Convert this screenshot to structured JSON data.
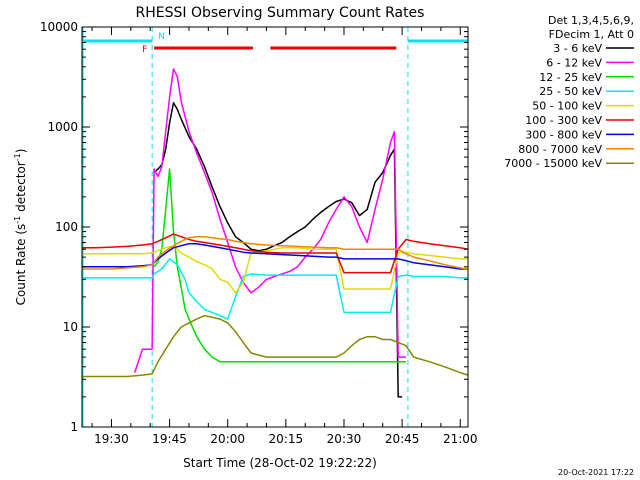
{
  "chart_data": {
    "type": "line",
    "title": "RHESSI Observing Summary Count Rates",
    "xlabel": "Start Time (28-Oct-02 19:22:22)",
    "ylabel": "Count Rate (s⁻¹ detector⁻¹)",
    "ylabel_main": "Count Rate (s",
    "ylabel_mid": " detector",
    "ylabel_close": ")",
    "ylabel_sup": "-1",
    "y_scale": "log",
    "xlim_minutes": [
      19.367,
      21.0
    ],
    "x_tick_labels": [
      "19:30",
      "19:45",
      "20:00",
      "20:15",
      "20:30",
      "20:45",
      "21:00"
    ],
    "x_tick_values": [
      1170,
      1185,
      1200,
      1215,
      1230,
      1245,
      1260
    ],
    "xlim": [
      1162.4,
      1262
    ],
    "ylim": [
      1,
      10000
    ],
    "y_tick_labels": [
      "1",
      "10",
      "100",
      "1000",
      "10000"
    ],
    "y_tick_values": [
      1,
      10,
      100,
      1000,
      10000
    ],
    "legend": {
      "placement": "top-right",
      "header": [
        "Det 1,3,4,5,6,9,",
        "FDecim 1, Att 0"
      ]
    },
    "flags": {
      "n_label": "N",
      "f_label": "F",
      "night_color": "#00e5ee",
      "flare_color": "#ee0000",
      "night": [
        [
          1162.4,
          1180.5
        ],
        [
          1246.5,
          1262
        ]
      ],
      "flare": [
        [
          1181,
          1206.5
        ],
        [
          1211,
          1243.5
        ]
      ],
      "saa_lines": [
        1180.5,
        1246.5
      ]
    },
    "series": [
      {
        "name": "3 - 6 keV",
        "color": "#000000",
        "x": [
          1162.4,
          1180.5,
          1181,
          1182,
          1183,
          1184,
          1185,
          1186,
          1187,
          1188,
          1190,
          1192,
          1194,
          1196,
          1198,
          1200,
          1202,
          1204,
          1206,
          1208,
          1210,
          1212,
          1214,
          1216,
          1218,
          1220,
          1222,
          1224,
          1226,
          1228,
          1230,
          1232,
          1234,
          1236,
          1238,
          1240,
          1242,
          1243,
          1244,
          1245,
          1246.5,
          1262
        ],
        "y": [
          null,
          null,
          350,
          380,
          420,
          600,
          1100,
          1750,
          1500,
          1200,
          800,
          600,
          400,
          250,
          160,
          110,
          80,
          70,
          60,
          58,
          60,
          65,
          70,
          80,
          90,
          100,
          120,
          140,
          160,
          180,
          190,
          175,
          130,
          150,
          280,
          350,
          520,
          600,
          2,
          2,
          null,
          null
        ]
      },
      {
        "name": "6 - 12 keV",
        "color": "#ff00ff",
        "x": [
          1162.4,
          1176,
          1178,
          1180.5,
          1181,
          1182,
          1183,
          1184,
          1185,
          1186,
          1187,
          1188,
          1190,
          1192,
          1194,
          1196,
          1198,
          1200,
          1202,
          1204,
          1206,
          1208,
          1210,
          1212,
          1214,
          1216,
          1218,
          1220,
          1222,
          1224,
          1226,
          1228,
          1230,
          1232,
          1234,
          1236,
          1238,
          1240,
          1242,
          1243,
          1244,
          1246,
          1248,
          1262
        ],
        "y": [
          null,
          3.5,
          6,
          6,
          380,
          320,
          400,
          900,
          2000,
          3800,
          3200,
          1800,
          900,
          550,
          350,
          220,
          120,
          70,
          40,
          28,
          22,
          25,
          30,
          32,
          34,
          36,
          40,
          50,
          60,
          75,
          110,
          150,
          200,
          160,
          100,
          70,
          150,
          300,
          700,
          900,
          5,
          5,
          null,
          null
        ]
      },
      {
        "name": "12 - 25 keV",
        "color": "#00dd00",
        "x": [
          1162.4,
          1180.5,
          1181,
          1182,
          1183,
          1184,
          1185,
          1186,
          1187,
          1188,
          1189,
          1190,
          1192,
          1194,
          1196,
          1198,
          1200,
          1202,
          1204,
          1206,
          1208,
          1210,
          1212,
          1214,
          1216,
          1218,
          1220,
          1222,
          1224,
          1226,
          1228,
          1230,
          1232,
          1234,
          1236,
          1238,
          1240,
          1242,
          1243,
          1244,
          1246,
          1248,
          1262
        ],
        "y": [
          null,
          null,
          40,
          45,
          60,
          150,
          380,
          90,
          40,
          25,
          15,
          12,
          8,
          6,
          5,
          4.5,
          4.5,
          4.5,
          4.5,
          4.5,
          4.5,
          4.5,
          4.5,
          4.5,
          4.5,
          4.5,
          4.5,
          4.5,
          4.5,
          4.5,
          4.5,
          4.5,
          4.5,
          4.5,
          4.5,
          4.5,
          4.5,
          4.5,
          4.5,
          4.5,
          4.5,
          null,
          null
        ]
      },
      {
        "name": "25 - 50 keV",
        "color": "#00eeee",
        "x": [
          1162.4,
          1166,
          1170,
          1174,
          1178,
          1180.5,
          1181,
          1183,
          1185,
          1187,
          1189,
          1190,
          1192,
          1194,
          1196,
          1198,
          1200,
          1202,
          1204,
          1206,
          1210,
          1214,
          1218,
          1222,
          1226,
          1228,
          1230,
          1232,
          1234,
          1236,
          1238,
          1240,
          1242,
          1244,
          1246,
          1248,
          1252,
          1256,
          1260,
          1262
        ],
        "y": [
          31,
          31,
          31,
          31,
          31,
          31,
          34,
          38,
          48,
          42,
          30,
          22,
          18,
          15,
          14,
          13,
          12,
          20,
          32,
          34,
          33,
          33,
          33,
          33,
          33,
          33,
          14,
          14,
          14,
          14,
          14,
          14,
          14,
          32,
          33,
          32,
          32,
          32,
          31,
          31
        ]
      },
      {
        "name": "50 - 100 keV",
        "color": "#dddd00",
        "x": [
          1162.4,
          1166,
          1170,
          1174,
          1178,
          1180.5,
          1182,
          1184,
          1186,
          1188,
          1190,
          1192,
          1194,
          1196,
          1198,
          1200,
          1202,
          1204,
          1206,
          1210,
          1214,
          1218,
          1222,
          1226,
          1228,
          1230,
          1232,
          1234,
          1236,
          1238,
          1240,
          1242,
          1244,
          1246,
          1248,
          1252,
          1256,
          1260,
          1262
        ],
        "y": [
          54,
          54,
          54,
          54,
          54,
          55,
          58,
          62,
          65,
          55,
          50,
          45,
          42,
          38,
          30,
          28,
          22,
          28,
          55,
          58,
          62,
          62,
          60,
          60,
          60,
          24,
          24,
          24,
          24,
          24,
          24,
          24,
          55,
          56,
          54,
          52,
          50,
          48,
          48
        ]
      },
      {
        "name": "100 - 300 keV",
        "color": "#ee0000",
        "x": [
          1162.4,
          1166,
          1170,
          1174,
          1178,
          1180.5,
          1182,
          1184,
          1186,
          1188,
          1190,
          1192,
          1194,
          1196,
          1198,
          1200,
          1202,
          1204,
          1206,
          1210,
          1214,
          1218,
          1222,
          1226,
          1228,
          1230,
          1232,
          1234,
          1236,
          1238,
          1240,
          1242,
          1244,
          1246,
          1248,
          1252,
          1256,
          1260,
          1262
        ],
        "y": [
          62,
          62,
          63,
          64,
          66,
          68,
          72,
          78,
          85,
          80,
          75,
          72,
          70,
          68,
          66,
          64,
          62,
          60,
          58,
          56,
          55,
          55,
          55,
          55,
          55,
          35,
          35,
          35,
          35,
          35,
          35,
          35,
          60,
          75,
          72,
          68,
          65,
          62,
          60
        ]
      },
      {
        "name": "300 - 800 keV",
        "color": "#0000ee",
        "x": [
          1162.4,
          1166,
          1170,
          1174,
          1178,
          1180.5,
          1182,
          1184,
          1186,
          1188,
          1190,
          1192,
          1194,
          1196,
          1198,
          1200,
          1202,
          1204,
          1206,
          1210,
          1214,
          1218,
          1222,
          1226,
          1228,
          1230,
          1232,
          1234,
          1236,
          1238,
          1240,
          1242,
          1244,
          1246,
          1248,
          1252,
          1256,
          1260,
          1262
        ],
        "y": [
          40,
          40,
          40,
          40,
          41,
          42,
          48,
          55,
          62,
          65,
          68,
          68,
          66,
          64,
          62,
          60,
          58,
          56,
          55,
          54,
          53,
          52,
          51,
          50,
          50,
          48,
          48,
          48,
          48,
          48,
          48,
          48,
          48,
          46,
          44,
          42,
          40,
          38,
          38
        ]
      },
      {
        "name": "800 - 7000 keV",
        "color": "#ee8800",
        "x": [
          1162.4,
          1166,
          1170,
          1174,
          1178,
          1180.5,
          1182,
          1184,
          1186,
          1188,
          1190,
          1192,
          1194,
          1196,
          1198,
          1200,
          1202,
          1204,
          1206,
          1210,
          1214,
          1218,
          1222,
          1226,
          1228,
          1230,
          1232,
          1234,
          1236,
          1238,
          1240,
          1242,
          1244,
          1246,
          1248,
          1252,
          1256,
          1260,
          1262
        ],
        "y": [
          38,
          38,
          38,
          39,
          40,
          42,
          50,
          58,
          65,
          72,
          78,
          80,
          80,
          78,
          76,
          75,
          72,
          70,
          68,
          66,
          65,
          64,
          63,
          62,
          62,
          60,
          60,
          60,
          60,
          60,
          60,
          60,
          60,
          54,
          50,
          46,
          42,
          39,
          38
        ]
      },
      {
        "name": "7000 - 15000 keV",
        "color": "#888800",
        "x": [
          1162.4,
          1166,
          1170,
          1174,
          1178,
          1180.5,
          1182,
          1184,
          1186,
          1188,
          1190,
          1192,
          1194,
          1196,
          1198,
          1200,
          1202,
          1204,
          1206,
          1210,
          1214,
          1218,
          1222,
          1226,
          1228,
          1230,
          1232,
          1234,
          1236,
          1238,
          1240,
          1242,
          1244,
          1246,
          1248,
          1252,
          1256,
          1260,
          1262
        ],
        "y": [
          3.2,
          3.2,
          3.2,
          3.2,
          3.3,
          3.4,
          4.5,
          6,
          8,
          10,
          11,
          12,
          13,
          12.5,
          12,
          11,
          9,
          7,
          5.5,
          5,
          5,
          5,
          5,
          5,
          5,
          5.5,
          6.5,
          7.5,
          8,
          8,
          7.5,
          7.5,
          7,
          6.5,
          5,
          4.5,
          4,
          3.5,
          3.3
        ]
      }
    ],
    "timestamp": "20-Oct-2021 17:22"
  }
}
